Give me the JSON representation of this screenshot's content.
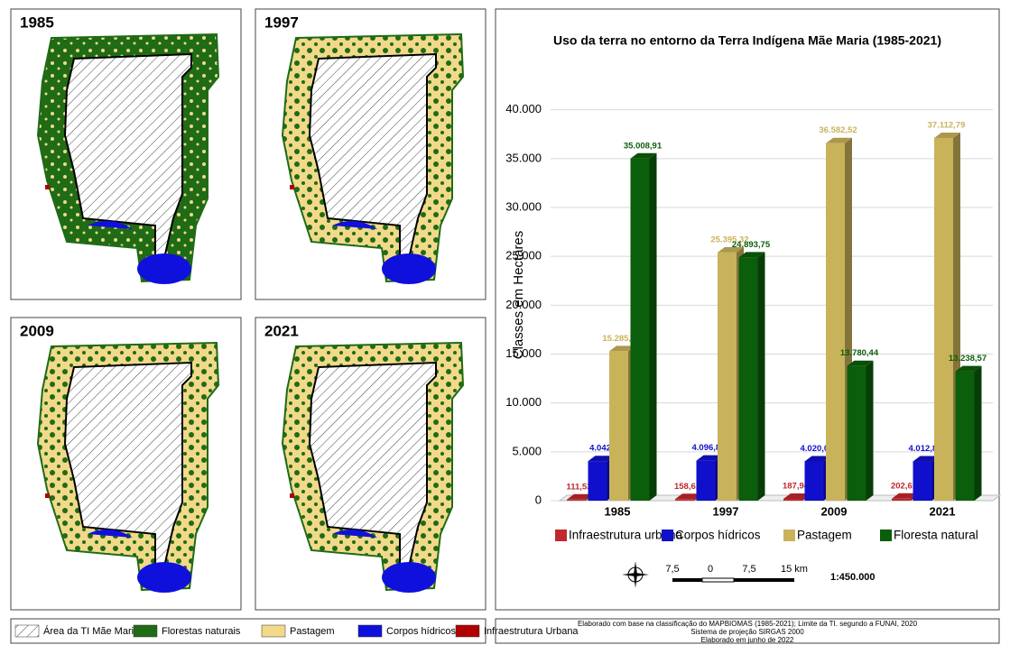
{
  "chart_data": {
    "type": "bar3d",
    "title": "Uso da terra no entorno da Terra Indígena Mãe Maria (1985-2021)",
    "y_label": "Classes em Hectares",
    "categories": [
      "1985",
      "1997",
      "2009",
      "2021"
    ],
    "series": [
      {
        "name": "Infraestrutura urbana",
        "color": "#c0282d",
        "values": [
          111.53,
          158.61,
          187.94,
          202.61
        ],
        "value_labels": [
          "111,53",
          "158,61",
          "187,94",
          "202,61"
        ]
      },
      {
        "name": "Corpos hídricos",
        "color": "#1010cc",
        "values": [
          4042,
          4096.85,
          4020.09,
          4012.89
        ],
        "value_labels": [
          "4.042",
          "4.096,85",
          "4.020,09",
          "4.012,89"
        ]
      },
      {
        "name": "Pastagem",
        "color": "#c9b35a",
        "values": [
          15285.86,
          25395.32,
          36582.52,
          37112.79
        ],
        "value_labels": [
          "15.285,86",
          "25.395,32",
          "36.582,52",
          "37.112,79"
        ]
      },
      {
        "name": "Floresta natural",
        "color": "#0b5e0b",
        "values": [
          35008.91,
          24893.75,
          13780.44,
          13238.57
        ],
        "value_labels": [
          "35.008,91",
          "24.893,75",
          "13.780,44",
          "13.238,57"
        ]
      }
    ],
    "ylim": [
      0,
      42000
    ],
    "yticks": [
      0,
      {
        "value": 5000,
        "label": "5.000"
      },
      {
        "value": 10000,
        "label": "10.000"
      },
      {
        "value": 15000,
        "label": "15.000"
      },
      {
        "value": 20000,
        "label": "20.000"
      },
      {
        "value": 25000,
        "label": "25.000"
      },
      {
        "value": 30000,
        "label": "30.000"
      },
      {
        "value": 35000,
        "label": "35.000"
      },
      {
        "value": 40000,
        "label": "40.000"
      }
    ],
    "grid": true
  },
  "maps": [
    "1985",
    "1997",
    "2009",
    "2021"
  ],
  "map_legend": [
    "Área da TI Mãe Maria",
    "Florestas naturais",
    "Pastagem",
    "Corpos hídricos",
    "Infraestrutura Urbana"
  ],
  "scale_bar": {
    "labels": [
      "7,5",
      "0",
      "7,5",
      "15 km"
    ],
    "ratio": "1:450.000"
  },
  "credits": [
    "Elaborado com base na classificação do MAPBIOMAS (1985-2021); Limite da TI. segundo a FUNAI, 2020",
    "Sistema de projeção SIRGAS 2000",
    "Elaborado em junho de 2022"
  ]
}
